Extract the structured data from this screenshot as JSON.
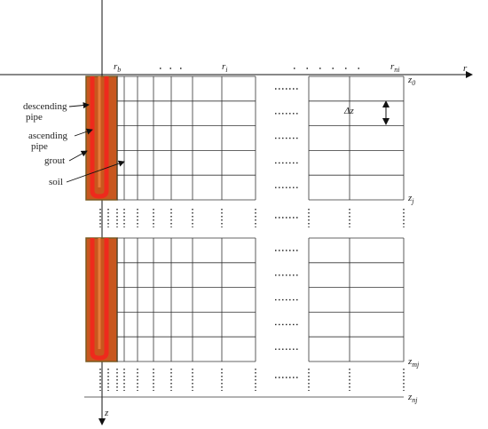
{
  "axes": {
    "r": "r",
    "z": "z"
  },
  "radial_labels": [
    {
      "base": "r",
      "sub": "b"
    },
    {
      "base": "r",
      "sub": "i"
    },
    {
      "base": "r",
      "sub": "ni"
    }
  ],
  "depth_labels": [
    {
      "base": "z",
      "sub": "0"
    },
    {
      "base": "z",
      "sub": "j"
    },
    {
      "base": "z",
      "sub": "mj"
    },
    {
      "base": "z",
      "sub": "nj"
    }
  ],
  "step_label": "Δz",
  "components": [
    {
      "lines": [
        "descending",
        "pipe"
      ]
    },
    {
      "lines": [
        "ascending",
        "pipe"
      ]
    },
    {
      "lines": [
        "grout"
      ]
    },
    {
      "lines": [
        "soil"
      ]
    }
  ]
}
